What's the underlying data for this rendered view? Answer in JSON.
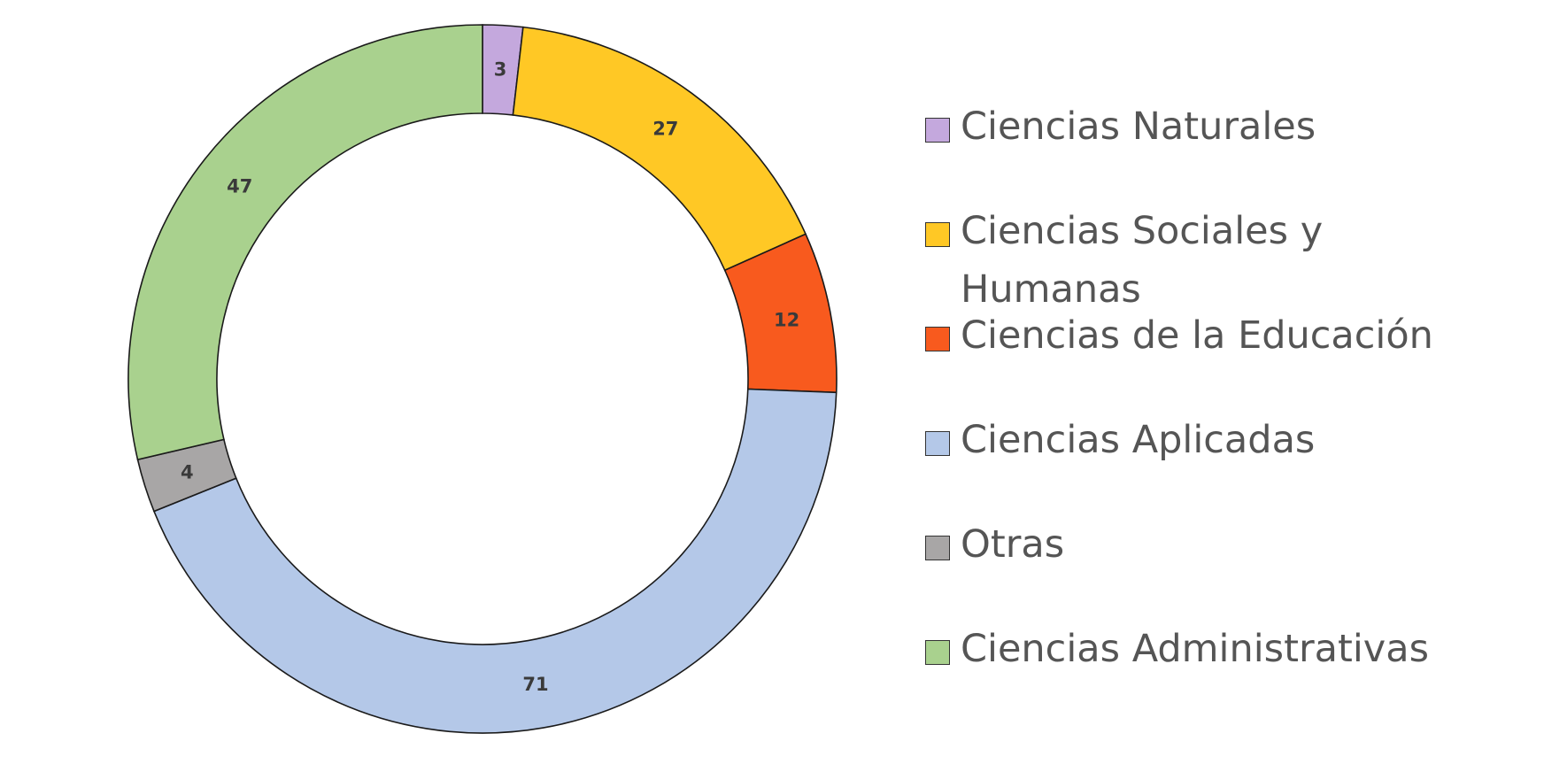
{
  "chart_data": {
    "type": "pie",
    "variant": "donut",
    "title": "",
    "legend_position": "right",
    "categories": [
      "Ciencias Naturales",
      "Ciencias Sociales y Humanas",
      "Ciencias de la Educación",
      "Ciencias Aplicadas",
      "Otras",
      "Ciencias Administrativas"
    ],
    "values": [
      3,
      27,
      12,
      71,
      4,
      47
    ],
    "data_labels": [
      "3",
      "27",
      "12",
      "71",
      "4",
      "47"
    ],
    "colors": [
      "#c4a8dd",
      "#ffc825",
      "#f85a1e",
      "#b4c8e8",
      "#a8a6a6",
      "#a9d18e"
    ]
  }
}
